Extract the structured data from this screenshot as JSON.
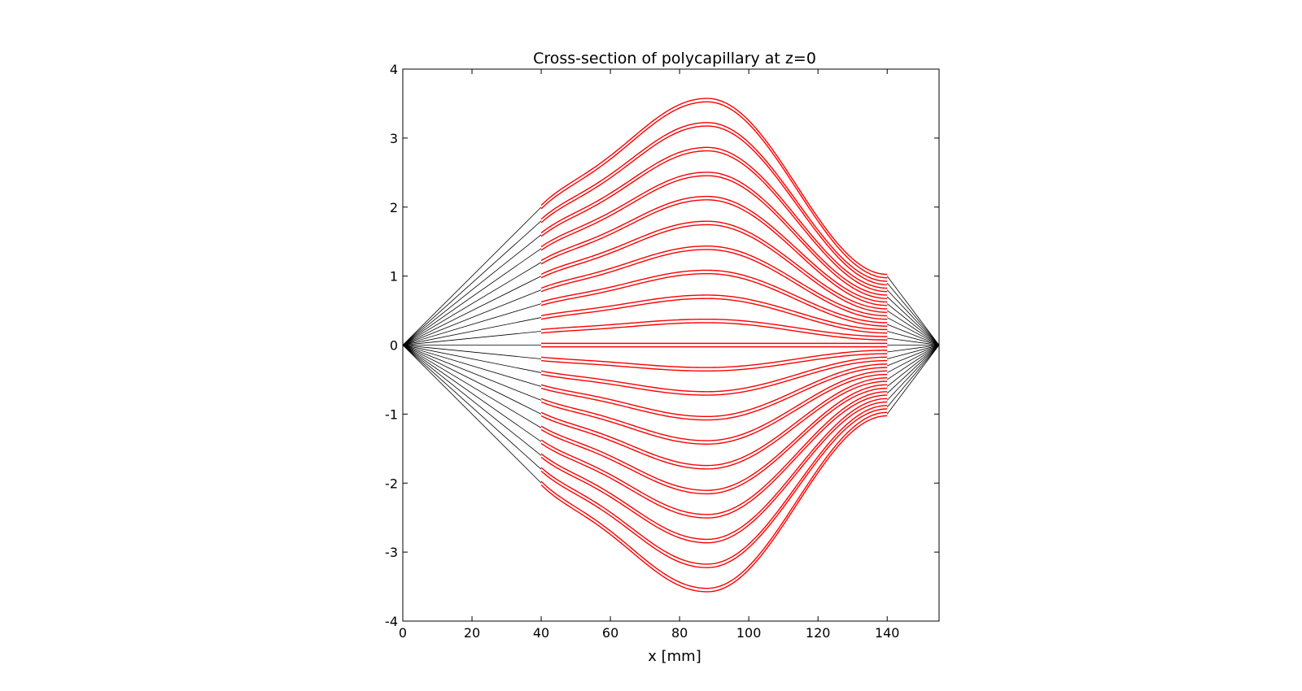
{
  "chart_data": {
    "type": "line",
    "title": "Cross-section of polycapillary at z=0",
    "xlabel": "x [mm]",
    "ylabel": "",
    "xlim": [
      0,
      155
    ],
    "ylim": [
      -4,
      4
    ],
    "xticks": [
      "0",
      "20",
      "40",
      "60",
      "80",
      "100",
      "120",
      "140"
    ],
    "yticks": [
      "4",
      "3",
      "2",
      "1",
      "0",
      "-1",
      "-2",
      "-3",
      "-4"
    ],
    "grid": false,
    "legend": "none",
    "colors": {
      "ray": "#000000",
      "capillary": "#ff0000"
    },
    "source_point": [
      0,
      0
    ],
    "focal_point": [
      155,
      0
    ],
    "capillary_x_range": [
      40,
      140
    ],
    "peak_x": 88,
    "wall_half_width": 0.025,
    "series": [
      {
        "entry_y": 2.0,
        "exit_y": 1.0,
        "peak_y": 3.55
      },
      {
        "entry_y": 1.8,
        "exit_y": 0.9,
        "peak_y": 3.2
      },
      {
        "entry_y": 1.6,
        "exit_y": 0.8,
        "peak_y": 2.84
      },
      {
        "entry_y": 1.4,
        "exit_y": 0.7,
        "peak_y": 2.48
      },
      {
        "entry_y": 1.2,
        "exit_y": 0.6,
        "peak_y": 2.13
      },
      {
        "entry_y": 1.0,
        "exit_y": 0.5,
        "peak_y": 1.77
      },
      {
        "entry_y": 0.8,
        "exit_y": 0.4,
        "peak_y": 1.41
      },
      {
        "entry_y": 0.6,
        "exit_y": 0.3,
        "peak_y": 1.06
      },
      {
        "entry_y": 0.4,
        "exit_y": 0.2,
        "peak_y": 0.7
      },
      {
        "entry_y": 0.2,
        "exit_y": 0.1,
        "peak_y": 0.35
      },
      {
        "entry_y": 0.0,
        "exit_y": 0.0,
        "peak_y": 0.0
      },
      {
        "entry_y": -0.2,
        "exit_y": -0.1,
        "peak_y": -0.35
      },
      {
        "entry_y": -0.4,
        "exit_y": -0.2,
        "peak_y": -0.7
      },
      {
        "entry_y": -0.6,
        "exit_y": -0.3,
        "peak_y": -1.06
      },
      {
        "entry_y": -0.8,
        "exit_y": -0.4,
        "peak_y": -1.41
      },
      {
        "entry_y": -1.0,
        "exit_y": -0.5,
        "peak_y": -1.77
      },
      {
        "entry_y": -1.2,
        "exit_y": -0.6,
        "peak_y": -2.13
      },
      {
        "entry_y": -1.4,
        "exit_y": -0.7,
        "peak_y": -2.48
      },
      {
        "entry_y": -1.6,
        "exit_y": -0.8,
        "peak_y": -2.84
      },
      {
        "entry_y": -1.8,
        "exit_y": -0.9,
        "peak_y": -3.2
      },
      {
        "entry_y": -2.0,
        "exit_y": -1.0,
        "peak_y": -3.55
      }
    ]
  }
}
